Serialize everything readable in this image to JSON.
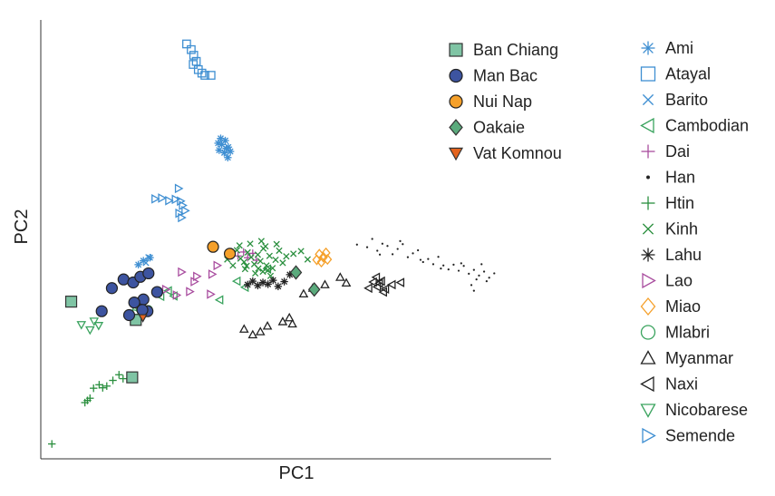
{
  "chart_data": {
    "type": "scatter",
    "xlabel": "PC1",
    "ylabel": "PC2",
    "xlim": [
      0,
      100
    ],
    "ylim": [
      0,
      100
    ],
    "grid": false,
    "legend_position": "right",
    "series": [
      {
        "name": "Ban Chiang",
        "marker": "square",
        "color": "#7fc4a4",
        "stroke": "#333333",
        "points": [
          [
            5.8,
            35.7
          ],
          [
            17.8,
            18.3
          ],
          [
            18.5,
            31.5
          ]
        ]
      },
      {
        "name": "Man Bac",
        "marker": "circle",
        "color": "#3d54a0",
        "stroke": "#222222",
        "points": [
          [
            11.8,
            33.5
          ],
          [
            13.8,
            38.8
          ],
          [
            16.1,
            40.8
          ],
          [
            18.0,
            40.1
          ],
          [
            19.4,
            41.4
          ],
          [
            21.0,
            42.2
          ],
          [
            22.7,
            37.9
          ],
          [
            20.0,
            36.2
          ],
          [
            18.2,
            35.5
          ],
          [
            20.8,
            33.5
          ],
          [
            17.2,
            32.6
          ],
          [
            19.8,
            33.8
          ]
        ]
      },
      {
        "name": "Nui Nap",
        "marker": "circle",
        "color": "#f5a02a",
        "stroke": "#222222",
        "points": [
          [
            33.7,
            48.3
          ],
          [
            37.0,
            46.7
          ]
        ]
      },
      {
        "name": "Oakaie",
        "marker": "diamond",
        "color": "#5aaa7c",
        "stroke": "#333333",
        "points": [
          [
            50.0,
            42.4
          ],
          [
            53.6,
            38.5
          ]
        ]
      },
      {
        "name": "Vat Komnou",
        "marker": "triangle-down",
        "color": "#e4641e",
        "stroke": "#333333",
        "points": [
          [
            19.9,
            32.0
          ]
        ]
      },
      {
        "name": "Ami",
        "marker": "asterisk",
        "color": "#3f8fd2",
        "points": [
          [
            35.4,
            71.8
          ],
          [
            36.1,
            72.7
          ],
          [
            34.9,
            70.5
          ],
          [
            36.7,
            71.2
          ],
          [
            35.9,
            69.9
          ],
          [
            37.1,
            70.2
          ],
          [
            35.2,
            73.2
          ],
          [
            36.6,
            68.8
          ],
          [
            34.7,
            72.1
          ],
          [
            36.3,
            70.9
          ],
          [
            20.0,
            45.1
          ],
          [
            21.3,
            45.8
          ],
          [
            19.0,
            44.2
          ]
        ]
      },
      {
        "name": "Atayal",
        "marker": "square-open",
        "color": "#3f8fd2",
        "points": [
          [
            28.5,
            94.9
          ],
          [
            29.4,
            93.6
          ],
          [
            29.9,
            92.3
          ],
          [
            30.4,
            90.9
          ],
          [
            29.8,
            90.2
          ],
          [
            30.8,
            89.0
          ],
          [
            31.5,
            88.2
          ],
          [
            32.1,
            87.7
          ],
          [
            33.3,
            87.7
          ]
        ]
      },
      {
        "name": "Barito",
        "marker": "x",
        "color": "#3f8fd2",
        "points": [
          [
            20.5,
            44.6
          ],
          [
            21.0,
            45.9
          ]
        ]
      },
      {
        "name": "Cambodian",
        "marker": "triangle-left",
        "color": "#3aa35e",
        "points": [
          [
            23.4,
            36.9
          ],
          [
            24.9,
            38.2
          ],
          [
            26.0,
            37.0
          ],
          [
            35.0,
            36.1
          ],
          [
            38.4,
            40.4
          ],
          [
            40.0,
            39.0
          ],
          [
            44.4,
            43.2
          ]
        ]
      },
      {
        "name": "Dai",
        "marker": "plus",
        "color": "#a94d9f",
        "points": [
          [
            38.6,
            46.2
          ],
          [
            39.7,
            47.1
          ],
          [
            40.5,
            45.8
          ],
          [
            41.5,
            46.8
          ],
          [
            42.2,
            45.2
          ]
        ]
      },
      {
        "name": "Han",
        "marker": "dot",
        "color": "#222222",
        "points": [
          [
            62.0,
            48.8
          ],
          [
            64.0,
            48.2
          ],
          [
            65.0,
            50.1
          ],
          [
            66.0,
            47.4
          ],
          [
            67.0,
            49.0
          ],
          [
            68.0,
            48.5
          ],
          [
            69.0,
            46.6
          ],
          [
            70.0,
            47.8
          ],
          [
            71.0,
            48.9
          ],
          [
            72.0,
            45.9
          ],
          [
            73.0,
            46.8
          ],
          [
            74.0,
            47.5
          ],
          [
            75.0,
            44.8
          ],
          [
            76.0,
            45.5
          ],
          [
            77.0,
            44.3
          ],
          [
            78.0,
            46.0
          ],
          [
            79.0,
            44.0
          ],
          [
            80.0,
            43.1
          ],
          [
            81.0,
            44.2
          ],
          [
            82.0,
            42.8
          ],
          [
            83.0,
            43.9
          ],
          [
            84.0,
            42.1
          ],
          [
            85.0,
            43.0
          ],
          [
            86.0,
            41.7
          ],
          [
            87.0,
            42.6
          ],
          [
            88.0,
            41.2
          ],
          [
            89.0,
            42.2
          ],
          [
            66.5,
            46.5
          ],
          [
            70.5,
            49.6
          ],
          [
            74.5,
            45.3
          ],
          [
            78.5,
            43.3
          ],
          [
            82.5,
            44.5
          ],
          [
            85.5,
            40.8
          ],
          [
            86.5,
            44.3
          ],
          [
            84.5,
            39.5
          ],
          [
            85.0,
            38.2
          ],
          [
            87.5,
            40.4
          ]
        ]
      },
      {
        "name": "Htin",
        "marker": "plus",
        "color": "#2a8f3e",
        "points": [
          [
            2.0,
            3.0
          ],
          [
            8.5,
            12.5
          ],
          [
            9.5,
            13.5
          ],
          [
            9.0,
            13.0
          ],
          [
            10.2,
            15.8
          ],
          [
            11.3,
            16.6
          ],
          [
            12.0,
            15.9
          ],
          [
            12.8,
            16.3
          ],
          [
            14.0,
            17.6
          ],
          [
            15.2,
            18.9
          ],
          [
            16.0,
            18.0
          ]
        ]
      },
      {
        "name": "Kinh",
        "marker": "x",
        "color": "#2a8f3e",
        "points": [
          [
            36.5,
            45.4
          ],
          [
            37.5,
            46.8
          ],
          [
            38.4,
            47.5
          ],
          [
            39.1,
            45.6
          ],
          [
            39.8,
            44.8
          ],
          [
            40.5,
            47.0
          ],
          [
            41.2,
            45.9
          ],
          [
            41.8,
            44.3
          ],
          [
            42.5,
            46.5
          ],
          [
            43.0,
            45.0
          ],
          [
            43.6,
            47.9
          ],
          [
            44.2,
            44.0
          ],
          [
            44.8,
            46.2
          ],
          [
            45.4,
            43.4
          ],
          [
            46.0,
            45.3
          ],
          [
            46.7,
            47.4
          ],
          [
            47.4,
            44.6
          ],
          [
            48.1,
            46.1
          ],
          [
            40.0,
            43.2
          ],
          [
            42.0,
            42.2
          ],
          [
            43.5,
            42.6
          ],
          [
            45.0,
            41.6
          ],
          [
            37.6,
            44.0
          ],
          [
            38.9,
            48.6
          ],
          [
            41.0,
            49.0
          ],
          [
            43.2,
            49.6
          ],
          [
            44.0,
            48.4
          ],
          [
            46.2,
            48.9
          ],
          [
            49.5,
            46.7
          ],
          [
            51.0,
            47.3
          ],
          [
            52.3,
            45.4
          ],
          [
            40.3,
            43.9
          ],
          [
            42.6,
            43.3
          ],
          [
            44.5,
            42.9
          ]
        ]
      },
      {
        "name": "Lahu",
        "marker": "asterisk",
        "color": "#222222",
        "points": [
          [
            40.5,
            39.6
          ],
          [
            41.5,
            40.4
          ],
          [
            42.5,
            39.4
          ],
          [
            43.5,
            40.1
          ],
          [
            44.5,
            39.7
          ],
          [
            45.5,
            40.6
          ],
          [
            46.5,
            39.2
          ],
          [
            47.7,
            40.3
          ],
          [
            48.8,
            41.9
          ]
        ]
      },
      {
        "name": "Lao",
        "marker": "triangle-right",
        "color": "#a94d9f",
        "points": [
          [
            27.5,
            42.5
          ],
          [
            30.0,
            40.3
          ],
          [
            33.5,
            42.0
          ],
          [
            34.5,
            44.0
          ],
          [
            33.2,
            37.4
          ],
          [
            29.1,
            38.0
          ],
          [
            30.5,
            41.5
          ],
          [
            24.4,
            38.5
          ],
          [
            26.5,
            37.2
          ]
        ]
      },
      {
        "name": "Miao",
        "marker": "diamond-open",
        "color": "#f5a02a",
        "points": [
          [
            54.6,
            46.6
          ],
          [
            55.4,
            45.9
          ],
          [
            56.2,
            45.4
          ],
          [
            54.1,
            45.3
          ],
          [
            55.9,
            46.9
          ],
          [
            55.0,
            44.8
          ]
        ]
      },
      {
        "name": "Mlabri",
        "marker": "circle-open",
        "color": "#3aa35e",
        "points": [
          [
            18.6,
            33.6
          ],
          [
            19.2,
            34.5
          ],
          [
            20.1,
            33.2
          ],
          [
            18.2,
            32.9
          ],
          [
            21.0,
            33.9
          ]
        ]
      },
      {
        "name": "Myanmar",
        "marker": "triangle-up",
        "color": "#222222",
        "points": [
          [
            39.8,
            29.4
          ],
          [
            41.5,
            28.1
          ],
          [
            43.0,
            28.8
          ],
          [
            44.4,
            30.1
          ],
          [
            47.4,
            31.1
          ],
          [
            48.7,
            32.0
          ],
          [
            49.3,
            30.6
          ],
          [
            51.5,
            37.5
          ],
          [
            53.3,
            38.8
          ],
          [
            55.7,
            39.6
          ],
          [
            58.7,
            41.3
          ],
          [
            59.9,
            40.0
          ]
        ]
      },
      {
        "name": "Naxi",
        "marker": "triangle-left",
        "color": "#222222",
        "points": [
          [
            64.3,
            38.8
          ],
          [
            65.2,
            40.2
          ],
          [
            66.0,
            39.1
          ],
          [
            66.8,
            40.4
          ],
          [
            67.6,
            38.6
          ],
          [
            68.9,
            39.6
          ],
          [
            70.6,
            40.1
          ],
          [
            65.8,
            41.3
          ],
          [
            67.2,
            37.9
          ],
          [
            66.4,
            39.9
          ]
        ]
      },
      {
        "name": "Nicobarese",
        "marker": "triangle-down",
        "color": "#3aa35e",
        "points": [
          [
            7.8,
            30.4
          ],
          [
            9.5,
            29.2
          ],
          [
            10.3,
            31.2
          ],
          [
            11.2,
            30.2
          ]
        ]
      },
      {
        "name": "Semende",
        "marker": "triangle-right",
        "color": "#3f8fd2",
        "points": [
          [
            22.3,
            59.3
          ],
          [
            23.6,
            59.5
          ],
          [
            25.0,
            58.9
          ],
          [
            26.3,
            59.2
          ],
          [
            26.9,
            61.7
          ],
          [
            27.3,
            58.8
          ],
          [
            27.7,
            57.8
          ],
          [
            27.0,
            56.0
          ],
          [
            27.5,
            55.0
          ],
          [
            28.2,
            56.6
          ]
        ]
      }
    ]
  }
}
